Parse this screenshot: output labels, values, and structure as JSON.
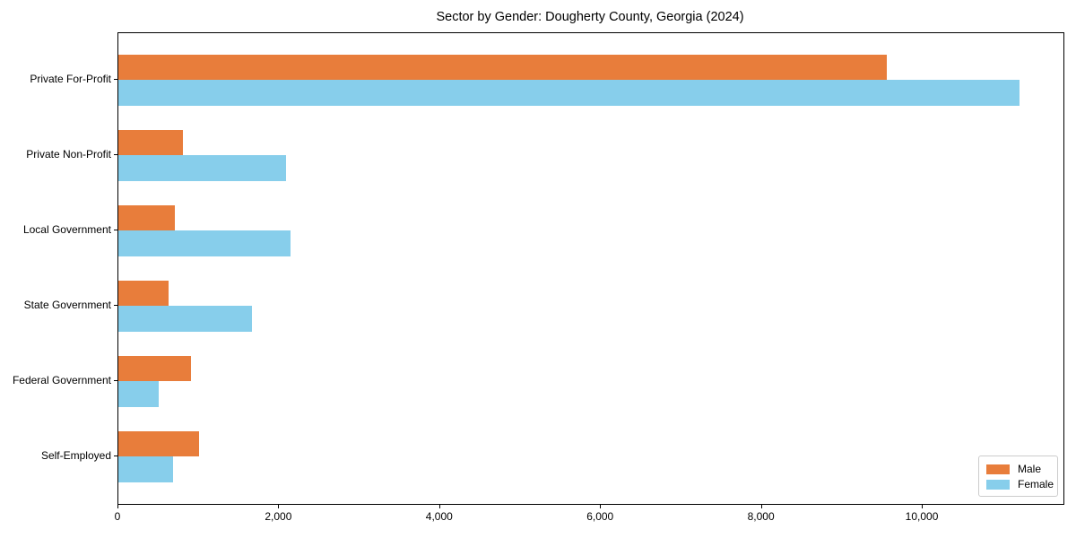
{
  "figure": {
    "background": "#ffffff",
    "text_color": "#000000",
    "spine_color": "#000000"
  },
  "chart_data": {
    "type": "bar",
    "orientation": "horizontal",
    "title": "Sector by Gender: Dougherty County, Georgia (2024)",
    "categories": [
      "Private For-Profit",
      "Private Non-Profit",
      "Local Government",
      "State Government",
      "Federal Government",
      "Self-Employed"
    ],
    "series": [
      {
        "name": "Male",
        "color": "#E87D3B",
        "values": [
          9550,
          800,
          700,
          620,
          900,
          1000
        ]
      },
      {
        "name": "Female",
        "color": "#87CEEB",
        "values": [
          11200,
          2080,
          2140,
          1660,
          505,
          685
        ]
      }
    ],
    "xlabel": "",
    "ylabel": "",
    "xlim": [
      0,
      11750
    ],
    "x_ticks": [
      {
        "value": 0,
        "label": "0"
      },
      {
        "value": 2000,
        "label": "2,000"
      },
      {
        "value": 4000,
        "label": "4,000"
      },
      {
        "value": 6000,
        "label": "6,000"
      },
      {
        "value": 8000,
        "label": "8,000"
      },
      {
        "value": 10000,
        "label": "10,000"
      }
    ],
    "grid": false,
    "legend": {
      "position": "lower right",
      "border_color": "#cccccc"
    }
  }
}
